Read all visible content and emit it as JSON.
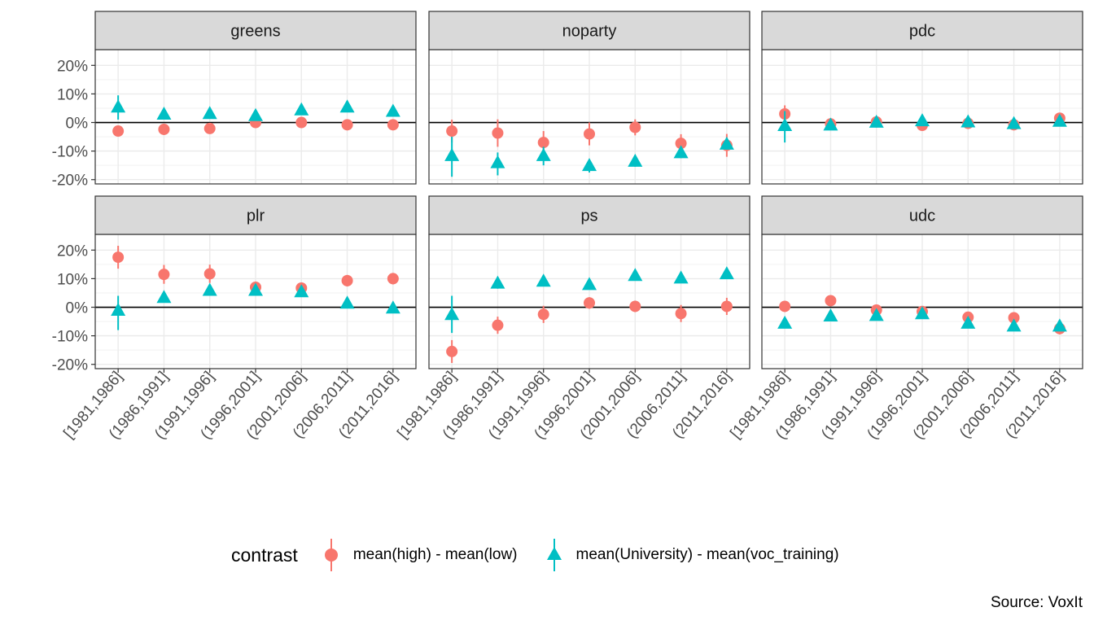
{
  "chart_data": {
    "type": "scatter",
    "facets": [
      "greens",
      "noparty",
      "pdc",
      "plr",
      "ps",
      "udc"
    ],
    "categories": [
      "[1981,1986]",
      "(1986,1991]",
      "(1991,1996]",
      "(1996,2001]",
      "(2001,2006]",
      "(2006,2011]",
      "(2011,2016]"
    ],
    "y_ticks": [
      "20%",
      "10%",
      "0%",
      "-10%",
      "-20%"
    ],
    "ylim": [
      -0.215,
      0.255
    ],
    "grid": true,
    "legend_position": "bottom",
    "legend": {
      "title": "contrast",
      "items": [
        "mean(high) - mean(low)",
        "mean(University) - mean(voc_training)"
      ]
    },
    "caption": "Source: VoxIt",
    "colors": {
      "high_low": "#F8766D",
      "uni_voc": "#00BFC4"
    },
    "series": [
      {
        "name": "mean(high) - mean(low)",
        "data": {
          "greens": {
            "values": [
              -0.03,
              -0.024,
              -0.021,
              0.0,
              0.0,
              -0.008,
              -0.008
            ],
            "lo": [
              -0.04,
              -0.032,
              -0.029,
              -0.007,
              -0.007,
              -0.016,
              -0.016
            ],
            "hi": [
              -0.02,
              -0.016,
              -0.013,
              0.007,
              0.007,
              0.0,
              0.0
            ]
          },
          "noparty": {
            "values": [
              -0.03,
              -0.037,
              -0.07,
              -0.04,
              -0.017,
              -0.073,
              -0.08
            ],
            "lo": [
              -0.07,
              -0.085,
              -0.11,
              -0.08,
              -0.045,
              -0.105,
              -0.12
            ],
            "hi": [
              0.01,
              0.011,
              -0.03,
              0.0,
              0.011,
              -0.041,
              -0.04
            ]
          },
          "pdc": {
            "values": [
              0.03,
              -0.005,
              0.002,
              -0.01,
              -0.003,
              -0.008,
              0.015
            ],
            "lo": [
              0.0,
              -0.025,
              -0.01,
              -0.02,
              -0.013,
              -0.018,
              0.005
            ],
            "hi": [
              0.06,
              0.015,
              0.014,
              0.0,
              0.007,
              0.002,
              0.025
            ]
          },
          "plr": {
            "values": [
              0.175,
              0.115,
              0.117,
              0.07,
              0.067,
              0.093,
              0.1
            ],
            "lo": [
              0.135,
              0.082,
              0.085,
              0.05,
              0.047,
              0.073,
              0.08
            ],
            "hi": [
              0.215,
              0.148,
              0.149,
              0.09,
              0.087,
              0.113,
              0.12
            ]
          },
          "ps": {
            "values": [
              -0.155,
              -0.063,
              -0.025,
              0.015,
              0.003,
              -0.022,
              0.003
            ],
            "lo": [
              -0.195,
              -0.093,
              -0.055,
              -0.005,
              -0.017,
              -0.052,
              -0.027
            ],
            "hi": [
              -0.115,
              -0.033,
              0.005,
              0.035,
              0.023,
              0.008,
              0.033
            ]
          },
          "udc": {
            "values": [
              0.003,
              0.023,
              -0.01,
              -0.015,
              -0.035,
              -0.037,
              -0.075
            ],
            "lo": [
              -0.007,
              0.013,
              -0.02,
              -0.025,
              -0.045,
              -0.057,
              -0.095
            ],
            "hi": [
              0.013,
              0.033,
              0.0,
              -0.005,
              -0.025,
              -0.017,
              -0.055
            ]
          }
        }
      },
      {
        "name": "mean(University) - mean(voc_training)",
        "data": {
          "greens": {
            "values": [
              0.055,
              0.03,
              0.032,
              0.025,
              0.045,
              0.055,
              0.04
            ],
            "lo": [
              0.01,
              0.02,
              0.022,
              0.015,
              0.035,
              0.045,
              0.03
            ],
            "hi": [
              0.095,
              0.04,
              0.042,
              0.035,
              0.055,
              0.065,
              0.05
            ]
          },
          "noparty": {
            "values": [
              -0.115,
              -0.14,
              -0.115,
              -0.15,
              -0.135,
              -0.105,
              -0.075
            ],
            "lo": [
              -0.19,
              -0.185,
              -0.15,
              -0.175,
              -0.155,
              -0.125,
              -0.095
            ],
            "hi": [
              -0.05,
              -0.105,
              -0.085,
              -0.13,
              -0.115,
              -0.085,
              -0.055
            ]
          },
          "pdc": {
            "values": [
              -0.01,
              -0.008,
              0.002,
              0.007,
              0.003,
              -0.003,
              0.005
            ],
            "lo": [
              -0.07,
              -0.018,
              -0.008,
              -0.003,
              -0.007,
              -0.013,
              -0.005
            ],
            "hi": [
              0.04,
              0.002,
              0.012,
              0.017,
              0.013,
              0.007,
              0.015
            ]
          },
          "plr": {
            "values": [
              -0.01,
              0.035,
              0.06,
              0.06,
              0.055,
              0.015,
              -0.002
            ],
            "lo": [
              -0.08,
              0.02,
              0.048,
              0.05,
              0.045,
              0.003,
              -0.012
            ],
            "hi": [
              0.04,
              0.05,
              0.072,
              0.07,
              0.065,
              0.027,
              0.008
            ]
          },
          "ps": {
            "values": [
              -0.025,
              0.085,
              0.092,
              0.08,
              0.112,
              0.103,
              0.118
            ],
            "lo": [
              -0.09,
              0.065,
              0.076,
              0.064,
              0.097,
              0.088,
              0.103
            ],
            "hi": [
              0.04,
              0.105,
              0.108,
              0.096,
              0.127,
              0.118,
              0.133
            ]
          },
          "udc": {
            "values": [
              -0.055,
              -0.03,
              -0.028,
              -0.022,
              -0.055,
              -0.065,
              -0.065
            ],
            "lo": [
              -0.065,
              -0.04,
              -0.038,
              -0.032,
              -0.065,
              -0.075,
              -0.075
            ],
            "hi": [
              -0.045,
              -0.02,
              -0.018,
              -0.012,
              -0.045,
              -0.055,
              -0.055
            ]
          }
        }
      }
    ]
  }
}
